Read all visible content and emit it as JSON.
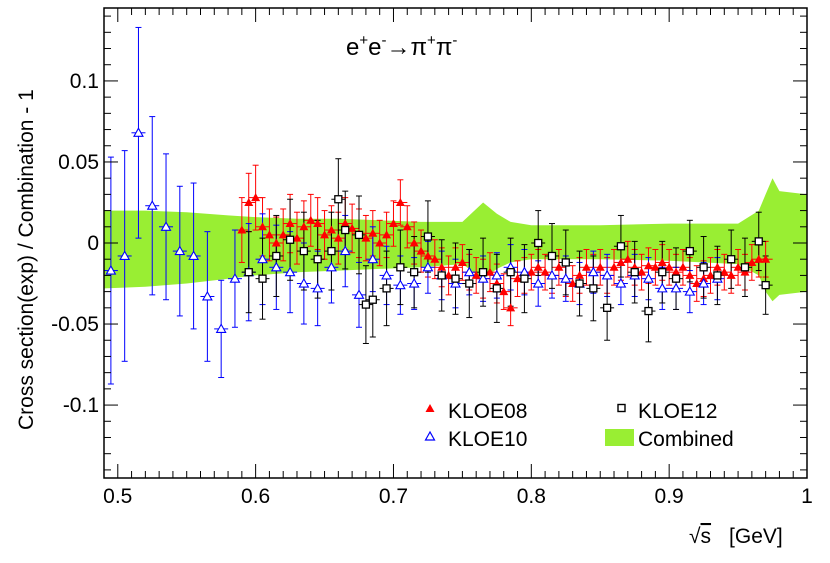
{
  "chart_data": {
    "type": "scatter",
    "annotation": {
      "base": "e",
      "sup1": "+",
      "mid1": "e",
      "sup2": "-",
      "arrow": "→π",
      "sup3": "+",
      "mid3": "π",
      "sup4": "-"
    },
    "xlabel": {
      "root": "√",
      "var": "s",
      "unit": "[GeV]"
    },
    "ylabel": "Cross section(exp) / Combination - 1",
    "xlim": [
      0.49,
      1.0
    ],
    "ylim": [
      -0.145,
      0.145
    ],
    "x_ticks": [
      {
        "v": 0.5,
        "label": "0.5"
      },
      {
        "v": 0.6,
        "label": "0.6"
      },
      {
        "v": 0.7,
        "label": "0.7"
      },
      {
        "v": 0.8,
        "label": "0.8"
      },
      {
        "v": 0.9,
        "label": "0.9"
      },
      {
        "v": 1.0,
        "label": "1"
      }
    ],
    "y_ticks": [
      {
        "v": -0.1,
        "label": "-0.1"
      },
      {
        "v": -0.05,
        "label": "-0.05"
      },
      {
        "v": 0,
        "label": "0"
      },
      {
        "v": 0.05,
        "label": "0.05"
      },
      {
        "v": 0.1,
        "label": "0.1"
      }
    ],
    "colors": {
      "KLOE08": "#ff0000",
      "KLOE10": "#0000ff",
      "KLOE12": "#000000",
      "Combined": "#99ee33"
    },
    "legend": [
      {
        "name": "KLOE08",
        "label": "KLOE08",
        "marker": "filled-triangle"
      },
      {
        "name": "KLOE12",
        "label": "KLOE12",
        "marker": "open-square"
      },
      {
        "name": "KLOE10",
        "label": "KLOE10",
        "marker": "open-triangle"
      },
      {
        "name": "Combined",
        "label": "Combined",
        "marker": "band"
      }
    ],
    "band": {
      "name": "Combined",
      "x": [
        0.49,
        0.52,
        0.55,
        0.58,
        0.6,
        0.63,
        0.66,
        0.69,
        0.72,
        0.75,
        0.765,
        0.775,
        0.785,
        0.8,
        0.85,
        0.9,
        0.95,
        0.965,
        0.97,
        0.975,
        0.98,
        1.0
      ],
      "upper": [
        0.02,
        0.02,
        0.019,
        0.017,
        0.016,
        0.015,
        0.015,
        0.014,
        0.013,
        0.013,
        0.025,
        0.018,
        0.013,
        0.011,
        0.011,
        0.012,
        0.012,
        0.02,
        0.03,
        0.04,
        0.032,
        0.03
      ],
      "lower": [
        -0.028,
        -0.027,
        -0.025,
        -0.022,
        -0.02,
        -0.018,
        -0.017,
        -0.016,
        -0.015,
        -0.013,
        -0.022,
        -0.016,
        -0.012,
        -0.01,
        -0.01,
        -0.011,
        -0.013,
        -0.02,
        -0.03,
        -0.036,
        -0.032,
        -0.03
      ]
    },
    "series": [
      {
        "name": "KLOE08",
        "marker": "filled-triangle",
        "x": [
          0.59,
          0.595,
          0.6,
          0.605,
          0.61,
          0.615,
          0.62,
          0.625,
          0.63,
          0.635,
          0.64,
          0.645,
          0.65,
          0.655,
          0.66,
          0.665,
          0.67,
          0.675,
          0.68,
          0.685,
          0.69,
          0.695,
          0.7,
          0.705,
          0.71,
          0.715,
          0.72,
          0.725,
          0.73,
          0.735,
          0.74,
          0.745,
          0.75,
          0.755,
          0.76,
          0.765,
          0.77,
          0.775,
          0.78,
          0.785,
          0.79,
          0.795,
          0.8,
          0.805,
          0.81,
          0.815,
          0.82,
          0.825,
          0.83,
          0.835,
          0.84,
          0.845,
          0.85,
          0.855,
          0.86,
          0.865,
          0.87,
          0.875,
          0.88,
          0.885,
          0.89,
          0.895,
          0.9,
          0.905,
          0.91,
          0.915,
          0.92,
          0.925,
          0.93,
          0.935,
          0.94,
          0.945,
          0.95,
          0.955,
          0.96,
          0.965,
          0.97
        ],
        "y": [
          0.008,
          0.025,
          0.028,
          0.01,
          0.005,
          0.0,
          0.005,
          0.012,
          0.003,
          0.01,
          0.014,
          0.012,
          0.005,
          0.008,
          0.003,
          0.012,
          0.009,
          0.006,
          0.003,
          0.006,
          0.0,
          0.005,
          0.012,
          0.025,
          0.01,
          0.0,
          -0.005,
          -0.008,
          -0.01,
          -0.015,
          -0.02,
          -0.015,
          -0.012,
          -0.018,
          -0.02,
          -0.022,
          -0.018,
          -0.025,
          -0.03,
          -0.04,
          -0.022,
          -0.02,
          -0.018,
          -0.015,
          -0.018,
          -0.02,
          -0.015,
          -0.022,
          -0.025,
          -0.02,
          -0.015,
          -0.018,
          -0.015,
          -0.02,
          -0.015,
          -0.012,
          -0.01,
          -0.015,
          -0.018,
          -0.014,
          -0.015,
          -0.012,
          -0.015,
          -0.018,
          -0.015,
          -0.02,
          -0.025,
          -0.022,
          -0.02,
          -0.015,
          -0.018,
          -0.02,
          -0.015,
          -0.018,
          -0.012,
          -0.01,
          -0.01
        ],
        "err": [
          0.02,
          0.018,
          0.02,
          0.018,
          0.016,
          0.016,
          0.016,
          0.018,
          0.016,
          0.016,
          0.016,
          0.016,
          0.015,
          0.015,
          0.016,
          0.016,
          0.015,
          0.015,
          0.014,
          0.014,
          0.014,
          0.014,
          0.014,
          0.014,
          0.013,
          0.013,
          0.013,
          0.013,
          0.012,
          0.012,
          0.012,
          0.012,
          0.011,
          0.011,
          0.011,
          0.012,
          0.012,
          0.012,
          0.011,
          0.011,
          0.011,
          0.011,
          0.011,
          0.011,
          0.011,
          0.011,
          0.011,
          0.011,
          0.011,
          0.011,
          0.011,
          0.011,
          0.011,
          0.011,
          0.011,
          0.011,
          0.011,
          0.011,
          0.011,
          0.011,
          0.011,
          0.011,
          0.011,
          0.011,
          0.011,
          0.011,
          0.011,
          0.011,
          0.011,
          0.011,
          0.011,
          0.011,
          0.011,
          0.011,
          0.011,
          0.011,
          0.011
        ]
      },
      {
        "name": "KLOE10",
        "marker": "open-triangle",
        "x": [
          0.495,
          0.505,
          0.515,
          0.525,
          0.535,
          0.545,
          0.555,
          0.565,
          0.575,
          0.585,
          0.595,
          0.605,
          0.615,
          0.625,
          0.635,
          0.645,
          0.655,
          0.665,
          0.675,
          0.685,
          0.695,
          0.705,
          0.715,
          0.725,
          0.735,
          0.745,
          0.755,
          0.765,
          0.775,
          0.785,
          0.795,
          0.805,
          0.815,
          0.825,
          0.835,
          0.845,
          0.855,
          0.865,
          0.875,
          0.885,
          0.895,
          0.905,
          0.915,
          0.925,
          0.935
        ],
        "y": [
          -0.017,
          -0.008,
          0.068,
          0.023,
          0.01,
          -0.005,
          -0.008,
          -0.033,
          -0.053,
          -0.022,
          -0.018,
          -0.01,
          -0.015,
          -0.018,
          -0.025,
          -0.028,
          -0.015,
          -0.005,
          -0.032,
          -0.01,
          -0.02,
          -0.026,
          -0.025,
          -0.015,
          -0.02,
          -0.025,
          -0.018,
          -0.022,
          -0.02,
          -0.015,
          -0.018,
          -0.025,
          -0.02,
          -0.022,
          -0.025,
          -0.018,
          -0.02,
          -0.025,
          -0.02,
          -0.022,
          -0.028,
          -0.028,
          -0.03,
          -0.025,
          -0.022
        ],
        "err": [
          0.07,
          0.065,
          0.065,
          0.055,
          0.045,
          0.04,
          0.045,
          0.04,
          0.03,
          0.03,
          0.03,
          0.028,
          0.026,
          0.025,
          0.025,
          0.023,
          0.022,
          0.022,
          0.02,
          0.02,
          0.018,
          0.018,
          0.016,
          0.016,
          0.015,
          0.015,
          0.014,
          0.014,
          0.014,
          0.014,
          0.014,
          0.014,
          0.014,
          0.014,
          0.013,
          0.013,
          0.013,
          0.013,
          0.013,
          0.013,
          0.013,
          0.013,
          0.013,
          0.013,
          0.013
        ]
      },
      {
        "name": "KLOE12",
        "marker": "open-square",
        "x": [
          0.595,
          0.605,
          0.615,
          0.625,
          0.635,
          0.645,
          0.655,
          0.66,
          0.665,
          0.675,
          0.68,
          0.685,
          0.695,
          0.705,
          0.715,
          0.725,
          0.735,
          0.745,
          0.755,
          0.765,
          0.775,
          0.785,
          0.795,
          0.805,
          0.815,
          0.825,
          0.835,
          0.845,
          0.855,
          0.865,
          0.875,
          0.885,
          0.895,
          0.905,
          0.915,
          0.925,
          0.935,
          0.945,
          0.955,
          0.965,
          0.97
        ],
        "y": [
          -0.018,
          -0.022,
          -0.008,
          0.002,
          -0.005,
          -0.01,
          -0.005,
          0.027,
          0.008,
          0.005,
          -0.038,
          -0.035,
          -0.028,
          -0.015,
          -0.018,
          0.004,
          -0.02,
          -0.022,
          -0.025,
          -0.018,
          -0.028,
          -0.018,
          -0.022,
          0.0,
          -0.008,
          -0.012,
          -0.025,
          -0.028,
          -0.04,
          -0.002,
          -0.018,
          -0.042,
          -0.018,
          -0.022,
          -0.005,
          -0.015,
          -0.02,
          -0.01,
          -0.015,
          0.001,
          -0.026
        ],
        "err": [
          0.025,
          0.025,
          0.025,
          0.025,
          0.024,
          0.024,
          0.024,
          0.025,
          0.024,
          0.024,
          0.024,
          0.023,
          0.023,
          0.023,
          0.022,
          0.022,
          0.022,
          0.022,
          0.021,
          0.021,
          0.021,
          0.021,
          0.021,
          0.02,
          0.02,
          0.02,
          0.02,
          0.02,
          0.02,
          0.019,
          0.019,
          0.019,
          0.019,
          0.019,
          0.019,
          0.019,
          0.018,
          0.018,
          0.018,
          0.018,
          0.018
        ]
      }
    ]
  }
}
